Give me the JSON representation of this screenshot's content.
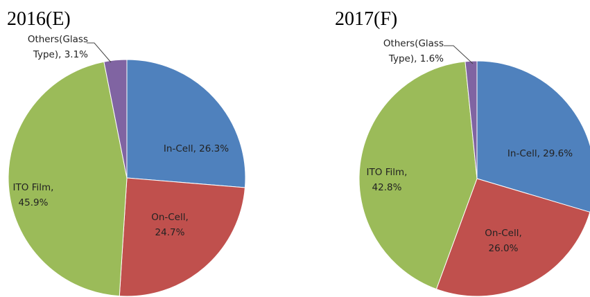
{
  "chart_data": [
    {
      "type": "pie",
      "title": "2016(E)",
      "categories": [
        "In-Cell",
        "On-Cell",
        "ITO Film",
        "Others(Glass Type)"
      ],
      "values": [
        26.3,
        24.7,
        45.9,
        3.1
      ],
      "value_labels": [
        "26.3%",
        "24.7%",
        "45.9%",
        "3.1%"
      ],
      "colors": [
        "#4f81bd",
        "#c0504d",
        "#9bbb59",
        "#8064a2"
      ]
    },
    {
      "type": "pie",
      "title": "2017(F)",
      "categories": [
        "In-Cell",
        "On-Cell",
        "ITO Film",
        "Others(Glass Type)"
      ],
      "values": [
        29.6,
        26.0,
        42.8,
        1.6
      ],
      "value_labels": [
        "29.6%",
        "26.0%",
        "42.8%",
        "1.6%"
      ],
      "colors": [
        "#4f81bd",
        "#c0504d",
        "#9bbb59",
        "#8064a2"
      ]
    }
  ]
}
